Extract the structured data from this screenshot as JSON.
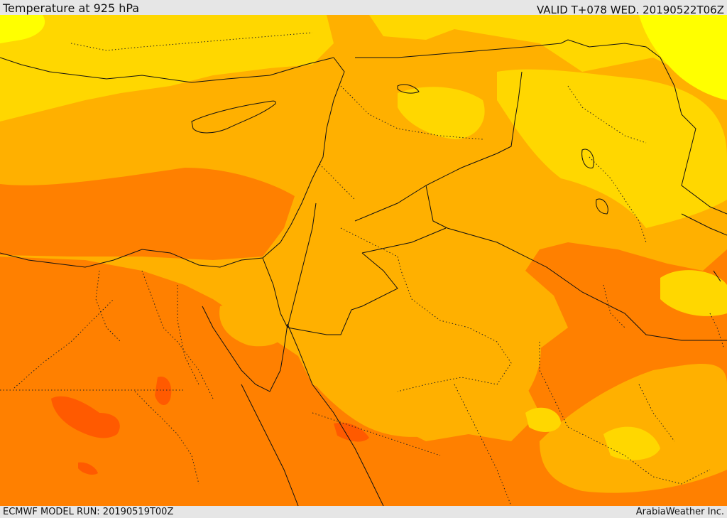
{
  "header": {
    "title": "Temperature at 925 hPa",
    "valid": "VALID T+078 WED. 20190522T06Z"
  },
  "footer": {
    "model_run": "ECMWF MODEL RUN: 20190519T00Z",
    "credit": "ArabiaWeather Inc."
  },
  "colors": {
    "yellow": "#ffff00",
    "gold": "#ffd700",
    "amber": "#ffb000",
    "orange": "#ff8000",
    "red_orange": "#ff5a00",
    "coast": "#111111",
    "border": "#111111"
  }
}
